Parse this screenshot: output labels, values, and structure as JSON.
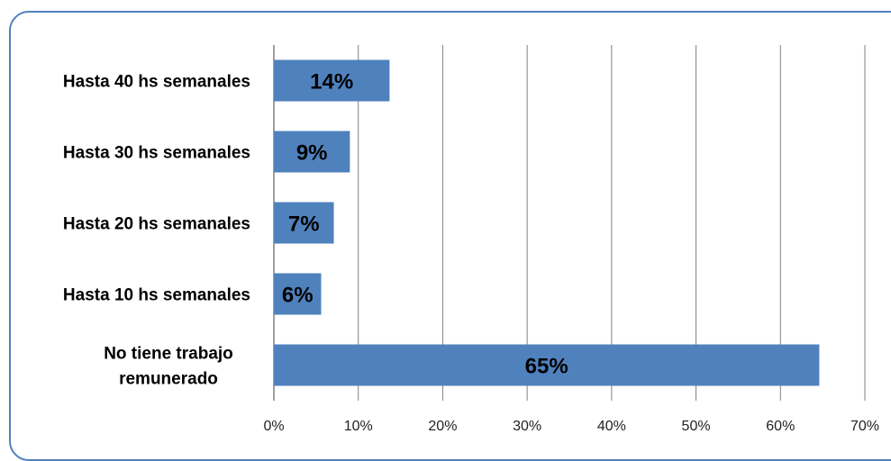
{
  "chart_data": {
    "type": "bar",
    "orientation": "horizontal",
    "categories": [
      "Hasta 40 hs semanales",
      "Hasta 30 hs semanales",
      "Hasta 20 hs semanales",
      "Hasta 10 hs semanales",
      "No tiene trabajo remunerado"
    ],
    "category_lines": [
      [
        "Hasta 40 hs semanales"
      ],
      [
        "Hasta 30 hs semanales"
      ],
      [
        "Hasta 20 hs semanales"
      ],
      [
        "Hasta 10 hs semanales"
      ],
      [
        "No tiene trabajo",
        "remunerado"
      ]
    ],
    "values": [
      13.7,
      9.0,
      7.1,
      5.6,
      64.6
    ],
    "data_labels": [
      "14%",
      "9%",
      "7%",
      "6%",
      "65%"
    ],
    "x_ticks": [
      "0%",
      "10%",
      "20%",
      "30%",
      "40%",
      "50%",
      "60%",
      "70%"
    ],
    "xlim": [
      0,
      70
    ],
    "gridlines": "vertical",
    "legend": "none",
    "title": "",
    "xlabel": "",
    "ylabel": "",
    "colors": {
      "bar": "#4f81bd",
      "frame": "#4f81bd",
      "grid": "#808080"
    }
  }
}
